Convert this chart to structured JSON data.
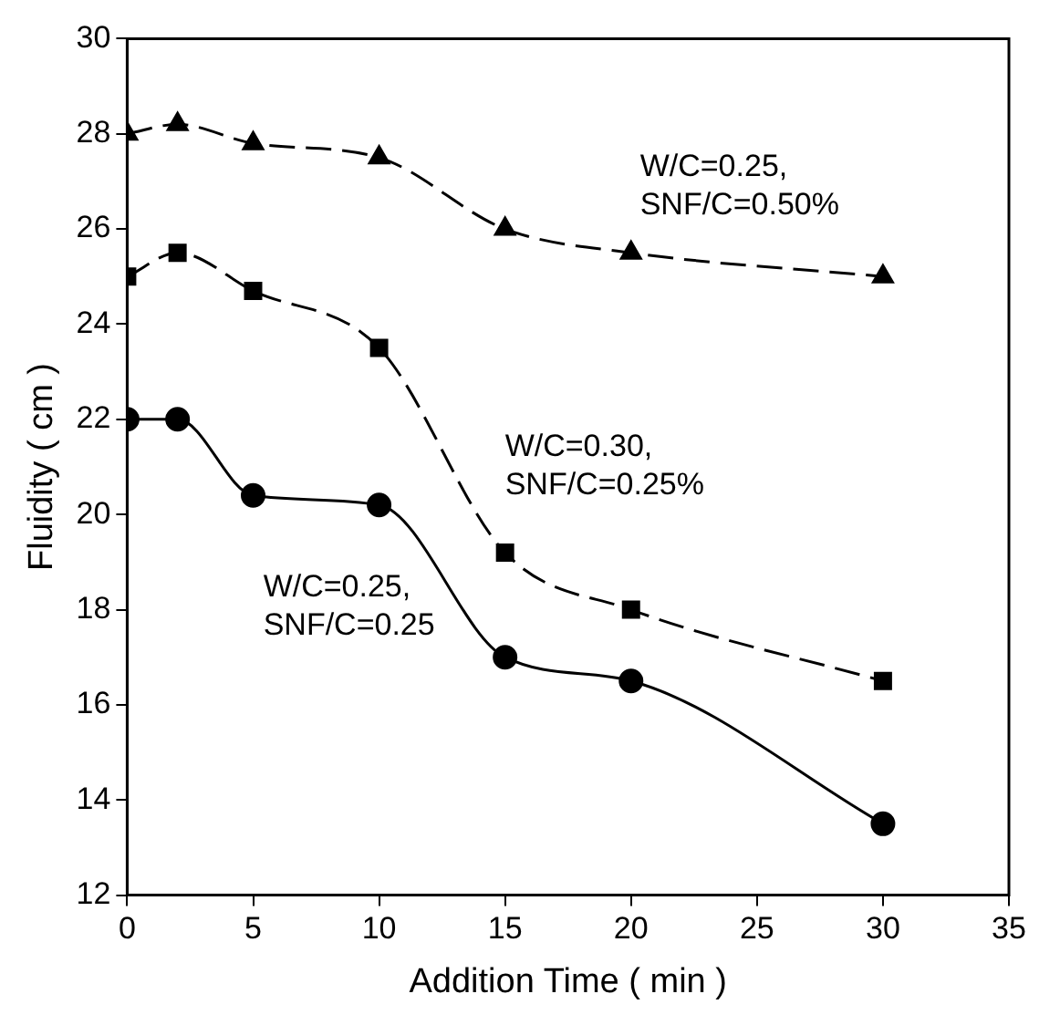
{
  "chart_data": {
    "type": "line",
    "xlabel": "Addition Time ( min )",
    "ylabel": "Fluidity ( cm )",
    "xlim": [
      0,
      35
    ],
    "xticks": [
      0,
      5,
      10,
      15,
      20,
      25,
      30,
      35
    ],
    "ylim": [
      12,
      30
    ],
    "yticks": [
      12,
      14,
      16,
      18,
      20,
      22,
      24,
      26,
      28,
      30
    ],
    "grid": false,
    "legend": false,
    "series": [
      {
        "name": "W/C=0.25, SNF/C=0.50%",
        "color": "#000000",
        "marker": "triangle",
        "line_style": "dashed",
        "x": [
          0,
          2,
          5,
          10,
          15,
          20,
          30
        ],
        "values": [
          28,
          28.2,
          27.8,
          27.5,
          26,
          25.5,
          25
        ]
      },
      {
        "name": "W/C=0.30, SNF/C=0.25%",
        "color": "#000000",
        "marker": "square",
        "line_style": "dashed",
        "x": [
          0,
          2,
          5,
          10,
          15,
          20,
          30
        ],
        "values": [
          25,
          25.5,
          24.7,
          23.5,
          19.2,
          18,
          16.5
        ]
      },
      {
        "name": "W/C=0.25, SNF/C=0.25",
        "color": "#000000",
        "marker": "circle",
        "line_style": "solid",
        "x": [
          0,
          2,
          5,
          10,
          15,
          20,
          30
        ],
        "values": [
          22,
          22,
          20.4,
          20.2,
          17,
          16.5,
          13.5
        ]
      }
    ]
  }
}
